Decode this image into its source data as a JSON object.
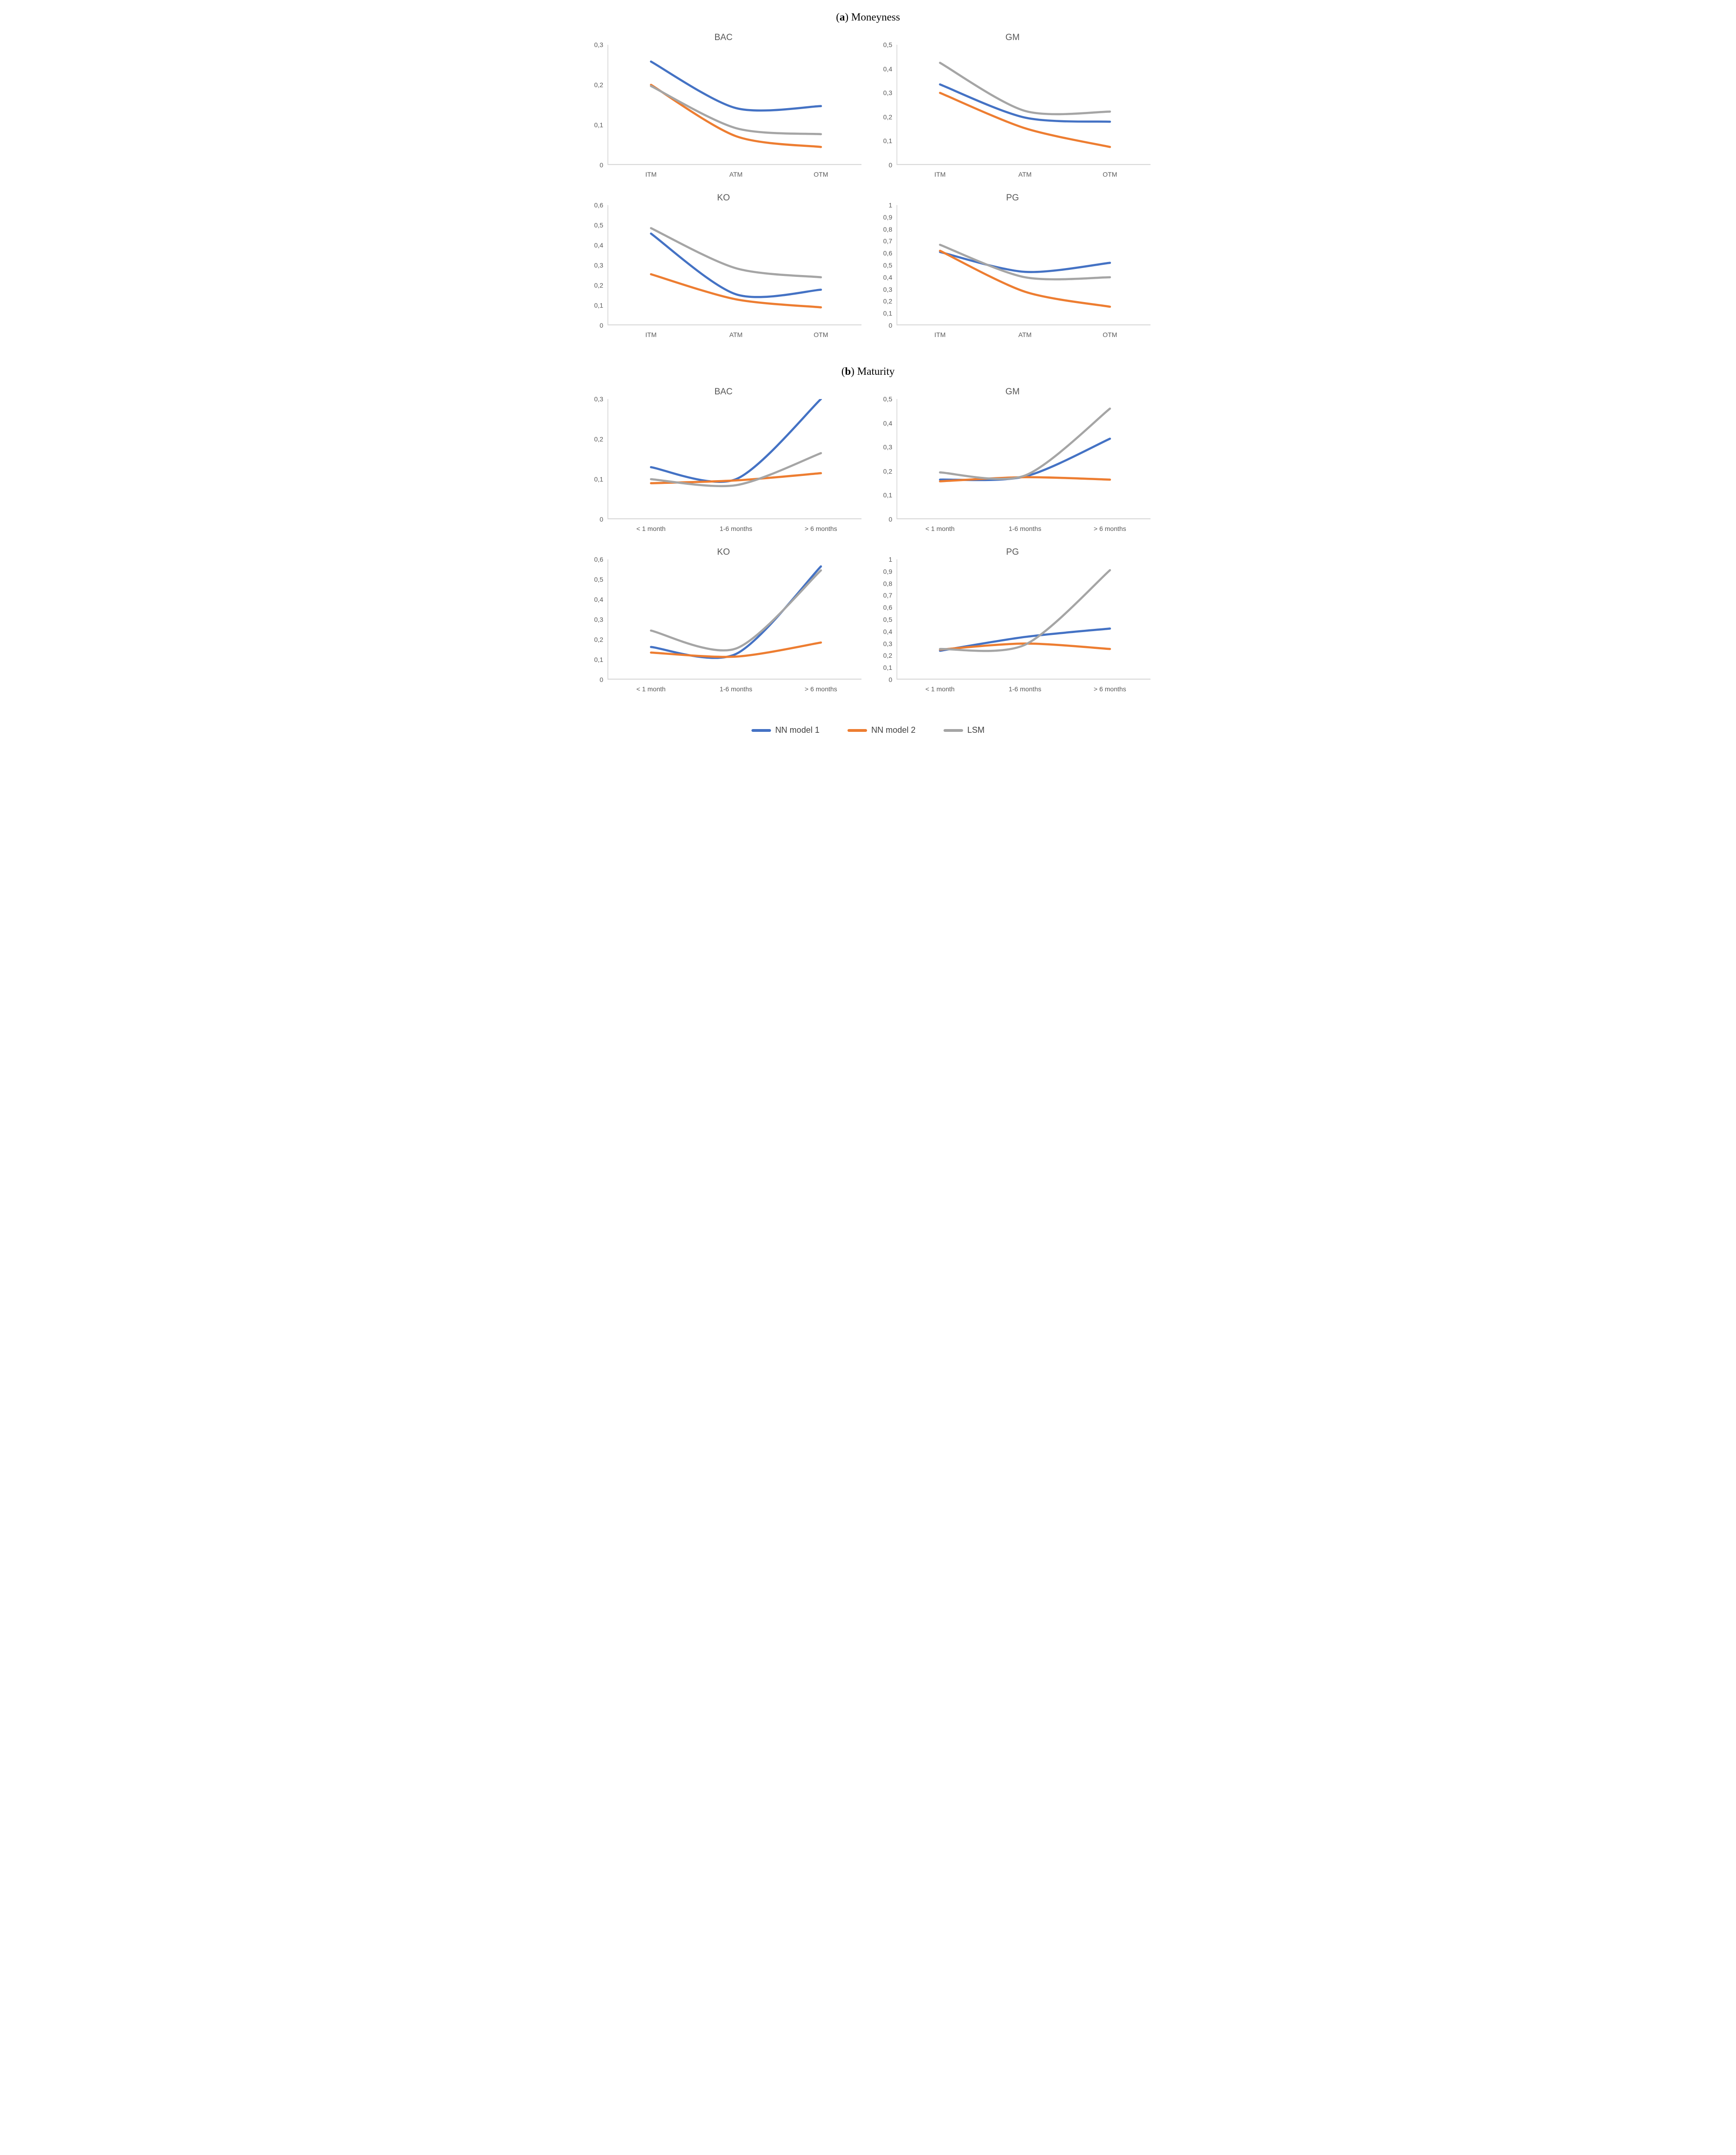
{
  "figure": {
    "sections": [
      {
        "id": "moneyness",
        "label_open": "(",
        "label_letter": "a",
        "label_tail": ") Moneyness"
      },
      {
        "id": "maturity",
        "label_open": "(",
        "label_letter": "b",
        "label_tail": ") Maturity"
      }
    ]
  },
  "colors": {
    "nn1": "#4472C4",
    "nn2": "#ED7D31",
    "lsm": "#A5A5A5",
    "axis_line": "#D9D9D9",
    "tick_label": "#595959",
    "chart_title": "#595959",
    "legend_text": "#404040"
  },
  "legend": {
    "position": "bottom-center",
    "items": [
      {
        "label": "NN model 1",
        "color_key": "nn1"
      },
      {
        "label": "NN model 2",
        "color_key": "nn2"
      },
      {
        "label": "LSM",
        "color_key": "lsm"
      }
    ]
  },
  "chart_data": [
    {
      "id": "bac-moneyness",
      "section": "Moneyness",
      "type": "line",
      "title": "BAC",
      "categories": [
        "ITM",
        "ATM",
        "OTM"
      ],
      "ylim": [
        0,
        0.3
      ],
      "y_ticks": [
        "0",
        "0,1",
        "0,2",
        "0,3"
      ],
      "grid": false,
      "series": [
        {
          "name": "NN model 1",
          "color_key": "nn1",
          "values": [
            0.258,
            0.142,
            0.147
          ]
        },
        {
          "name": "NN model 2",
          "color_key": "nn2",
          "values": [
            0.2,
            0.072,
            0.045
          ]
        },
        {
          "name": "LSM",
          "color_key": "lsm",
          "values": [
            0.197,
            0.092,
            0.077
          ]
        }
      ]
    },
    {
      "id": "gm-moneyness",
      "section": "Moneyness",
      "type": "line",
      "title": "GM",
      "categories": [
        "ITM",
        "ATM",
        "OTM"
      ],
      "ylim": [
        0,
        0.5
      ],
      "y_ticks": [
        "0",
        "0,1",
        "0,2",
        "0,3",
        "0,4",
        "0,5"
      ],
      "grid": false,
      "series": [
        {
          "name": "NN model 1",
          "color_key": "nn1",
          "values": [
            0.335,
            0.197,
            0.18
          ]
        },
        {
          "name": "NN model 2",
          "color_key": "nn2",
          "values": [
            0.3,
            0.153,
            0.075
          ]
        },
        {
          "name": "LSM",
          "color_key": "lsm",
          "values": [
            0.425,
            0.225,
            0.222
          ]
        }
      ]
    },
    {
      "id": "ko-moneyness",
      "section": "Moneyness",
      "type": "line",
      "title": "KO",
      "categories": [
        "ITM",
        "ATM",
        "OTM"
      ],
      "ylim": [
        0,
        0.6
      ],
      "y_ticks": [
        "0",
        "0,1",
        "0,2",
        "0,3",
        "0,4",
        "0,5",
        "0,6"
      ],
      "grid": false,
      "series": [
        {
          "name": "NN model 1",
          "color_key": "nn1",
          "values": [
            0.458,
            0.155,
            0.178
          ]
        },
        {
          "name": "NN model 2",
          "color_key": "nn2",
          "values": [
            0.255,
            0.13,
            0.09
          ]
        },
        {
          "name": "LSM",
          "color_key": "lsm",
          "values": [
            0.485,
            0.285,
            0.24
          ]
        }
      ]
    },
    {
      "id": "pg-moneyness",
      "section": "Moneyness",
      "type": "line",
      "title": "PG",
      "categories": [
        "ITM",
        "ATM",
        "OTM"
      ],
      "ylim": [
        0,
        1
      ],
      "y_ticks": [
        "0",
        "0,1",
        "0,2",
        "0,3",
        "0,4",
        "0,5",
        "0,6",
        "0,7",
        "0,8",
        "0,9",
        "1"
      ],
      "grid": false,
      "series": [
        {
          "name": "NN model 1",
          "color_key": "nn1",
          "values": [
            0.61,
            0.445,
            0.52
          ]
        },
        {
          "name": "NN model 2",
          "color_key": "nn2",
          "values": [
            0.62,
            0.28,
            0.155
          ]
        },
        {
          "name": "LSM",
          "color_key": "lsm",
          "values": [
            0.67,
            0.4,
            0.4
          ]
        }
      ]
    },
    {
      "id": "bac-maturity",
      "section": "Maturity",
      "type": "line",
      "title": "BAC",
      "categories": [
        "< 1 month",
        "1-6 months",
        "> 6 months"
      ],
      "ylim": [
        0,
        0.3
      ],
      "y_ticks": [
        "0",
        "0,1",
        "0,2",
        "0,3"
      ],
      "grid": false,
      "series": [
        {
          "name": "NN model 1",
          "color_key": "nn1",
          "values": [
            0.13,
            0.1,
            0.3
          ]
        },
        {
          "name": "NN model 2",
          "color_key": "nn2",
          "values": [
            0.09,
            0.097,
            0.115
          ]
        },
        {
          "name": "LSM",
          "color_key": "lsm",
          "values": [
            0.1,
            0.085,
            0.165
          ]
        }
      ]
    },
    {
      "id": "gm-maturity",
      "section": "Maturity",
      "type": "line",
      "title": "GM",
      "categories": [
        "< 1 month",
        "1-6 months",
        "> 6 months"
      ],
      "ylim": [
        0,
        0.5
      ],
      "y_ticks": [
        "0",
        "0,1",
        "0,2",
        "0,3",
        "0,4",
        "0,5"
      ],
      "grid": false,
      "series": [
        {
          "name": "NN model 1",
          "color_key": "nn1",
          "values": [
            0.165,
            0.178,
            0.335
          ]
        },
        {
          "name": "NN model 2",
          "color_key": "nn2",
          "values": [
            0.158,
            0.175,
            0.165
          ]
        },
        {
          "name": "LSM",
          "color_key": "lsm",
          "values": [
            0.195,
            0.182,
            0.46
          ]
        }
      ]
    },
    {
      "id": "ko-maturity",
      "section": "Maturity",
      "type": "line",
      "title": "KO",
      "categories": [
        "< 1 month",
        "1-6 months",
        "> 6 months"
      ],
      "ylim": [
        0,
        0.6
      ],
      "y_ticks": [
        "0",
        "0,1",
        "0,2",
        "0,3",
        "0,4",
        "0,5",
        "0,6"
      ],
      "grid": false,
      "series": [
        {
          "name": "NN model 1",
          "color_key": "nn1",
          "values": [
            0.163,
            0.128,
            0.565
          ]
        },
        {
          "name": "NN model 2",
          "color_key": "nn2",
          "values": [
            0.135,
            0.115,
            0.185
          ]
        },
        {
          "name": "LSM",
          "color_key": "lsm",
          "values": [
            0.245,
            0.155,
            0.545
          ]
        }
      ]
    },
    {
      "id": "pg-maturity",
      "section": "Maturity",
      "type": "line",
      "title": "PG",
      "categories": [
        "< 1 month",
        "1-6 months",
        "> 6 months"
      ],
      "ylim": [
        0,
        1
      ],
      "y_ticks": [
        "0",
        "0,1",
        "0,2",
        "0,3",
        "0,4",
        "0,5",
        "0,6",
        "0,7",
        "0,8",
        "0,9",
        "1"
      ],
      "grid": false,
      "series": [
        {
          "name": "NN model 1",
          "color_key": "nn1",
          "values": [
            0.24,
            0.355,
            0.425
          ]
        },
        {
          "name": "NN model 2",
          "color_key": "nn2",
          "values": [
            0.25,
            0.3,
            0.255
          ]
        },
        {
          "name": "LSM",
          "color_key": "lsm",
          "values": [
            0.255,
            0.29,
            0.91
          ]
        }
      ]
    }
  ]
}
